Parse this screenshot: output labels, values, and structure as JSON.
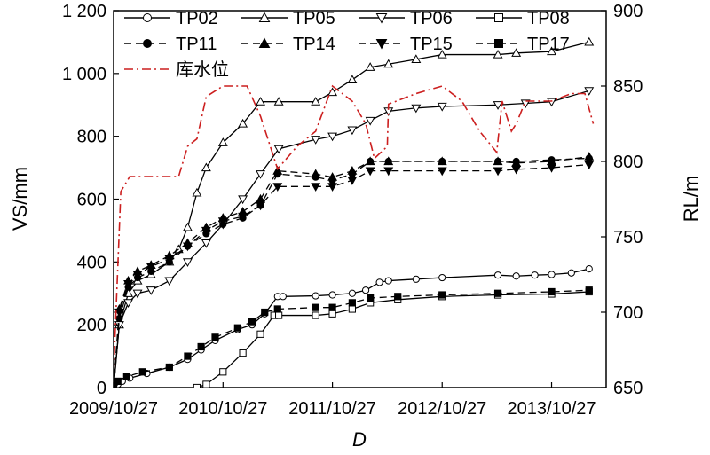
{
  "chart_data": {
    "type": "line",
    "xlabel": "D",
    "ylabel_left": "VS/mm",
    "ylabel_right": "RL/m",
    "x_ticks": [
      "2009/10/27",
      "2010/10/27",
      "2011/10/27",
      "2012/10/27",
      "2013/10/27"
    ],
    "xlim": [
      "2009/10/27",
      "2014/04/27"
    ],
    "ylim_left": [
      0,
      1200
    ],
    "ylim_right": [
      650,
      900
    ],
    "y_ticks_left": [
      "0",
      "200",
      "400",
      "600",
      "800",
      "1 000",
      "1 200"
    ],
    "y_ticks_right": [
      "650",
      "700",
      "750",
      "800",
      "850",
      "900"
    ],
    "legend_position": "top",
    "series": [
      {
        "name": "TP02",
        "axis": "left",
        "marker": "circle-open",
        "dash": "solid",
        "points": [
          [
            "2009/10/27",
            0
          ],
          [
            "2009/11/10",
            10
          ],
          [
            "2009/11/25",
            20
          ],
          [
            "2009/12/20",
            30
          ],
          [
            "2010/02/15",
            45
          ],
          [
            "2010/05/01",
            65
          ],
          [
            "2010/07/01",
            90
          ],
          [
            "2010/08/15",
            120
          ],
          [
            "2010/10/01",
            150
          ],
          [
            "2010/12/15",
            185
          ],
          [
            "2011/02/01",
            200
          ],
          [
            "2011/03/15",
            235
          ],
          [
            "2011/04/27",
            290
          ],
          [
            "2011/05/15",
            290
          ],
          [
            "2011/09/01",
            292
          ],
          [
            "2011/10/27",
            295
          ],
          [
            "2012/01/01",
            300
          ],
          [
            "2012/02/15",
            310
          ],
          [
            "2012/04/01",
            335
          ],
          [
            "2012/05/01",
            340
          ],
          [
            "2012/08/01",
            345
          ],
          [
            "2012/10/27",
            350
          ],
          [
            "2013/05/01",
            358
          ],
          [
            "2013/07/01",
            355
          ],
          [
            "2013/09/01",
            358
          ],
          [
            "2013/10/27",
            360
          ],
          [
            "2014/01/01",
            365
          ],
          [
            "2014/03/01",
            378
          ]
        ]
      },
      {
        "name": "TP05",
        "axis": "left",
        "marker": "triangle-up-open",
        "dash": "solid",
        "points": [
          [
            "2009/10/27",
            0
          ],
          [
            "2009/11/15",
            200
          ],
          [
            "2009/12/15",
            300
          ],
          [
            "2010/01/15",
            340
          ],
          [
            "2010/03/01",
            360
          ],
          [
            "2010/05/01",
            400
          ],
          [
            "2010/06/01",
            440
          ],
          [
            "2010/07/01",
            510
          ],
          [
            "2010/08/01",
            620
          ],
          [
            "2010/09/01",
            700
          ],
          [
            "2010/10/27",
            780
          ],
          [
            "2011/01/01",
            840
          ],
          [
            "2011/03/01",
            910
          ],
          [
            "2011/05/01",
            910
          ],
          [
            "2011/09/01",
            910
          ],
          [
            "2011/10/27",
            940
          ],
          [
            "2012/01/01",
            980
          ],
          [
            "2012/03/01",
            1020
          ],
          [
            "2012/05/01",
            1030
          ],
          [
            "2012/08/01",
            1045
          ],
          [
            "2012/10/27",
            1060
          ],
          [
            "2013/05/01",
            1060
          ],
          [
            "2013/07/01",
            1065
          ],
          [
            "2013/10/27",
            1070
          ],
          [
            "2014/03/01",
            1100
          ]
        ]
      },
      {
        "name": "TP06",
        "axis": "left",
        "marker": "triangle-down-open",
        "dash": "solid",
        "points": [
          [
            "2009/10/27",
            0
          ],
          [
            "2009/11/15",
            200
          ],
          [
            "2009/12/15",
            270
          ],
          [
            "2010/01/15",
            300
          ],
          [
            "2010/03/01",
            310
          ],
          [
            "2010/05/01",
            340
          ],
          [
            "2010/07/01",
            400
          ],
          [
            "2010/09/01",
            460
          ],
          [
            "2010/10/27",
            520
          ],
          [
            "2011/01/01",
            600
          ],
          [
            "2011/03/01",
            680
          ],
          [
            "2011/05/01",
            760
          ],
          [
            "2011/09/01",
            790
          ],
          [
            "2011/10/27",
            800
          ],
          [
            "2012/01/01",
            820
          ],
          [
            "2012/03/01",
            850
          ],
          [
            "2012/05/01",
            880
          ],
          [
            "2012/08/01",
            890
          ],
          [
            "2012/10/27",
            895
          ],
          [
            "2013/05/01",
            900
          ],
          [
            "2013/08/01",
            905
          ],
          [
            "2013/10/27",
            910
          ],
          [
            "2014/03/01",
            945
          ]
        ]
      },
      {
        "name": "TP08",
        "axis": "left",
        "marker": "square-open",
        "dash": "solid",
        "points": [
          [
            "2010/08/01",
            0
          ],
          [
            "2010/09/01",
            10
          ],
          [
            "2010/10/27",
            50
          ],
          [
            "2011/01/01",
            110
          ],
          [
            "2011/03/01",
            170
          ],
          [
            "2011/04/15",
            230
          ],
          [
            "2011/05/01",
            230
          ],
          [
            "2011/09/01",
            230
          ],
          [
            "2011/10/27",
            235
          ],
          [
            "2012/01/01",
            250
          ],
          [
            "2012/03/01",
            270
          ],
          [
            "2012/06/01",
            280
          ],
          [
            "2012/10/27",
            290
          ],
          [
            "2013/05/01",
            295
          ],
          [
            "2013/10/27",
            298
          ],
          [
            "2014/03/01",
            305
          ]
        ]
      },
      {
        "name": "TP11",
        "axis": "left",
        "marker": "circle-filled",
        "dash": "dashed",
        "points": [
          [
            "2009/10/27",
            0
          ],
          [
            "2009/11/15",
            220
          ],
          [
            "2009/12/15",
            320
          ],
          [
            "2010/01/15",
            350
          ],
          [
            "2010/03/01",
            370
          ],
          [
            "2010/05/01",
            400
          ],
          [
            "2010/07/01",
            450
          ],
          [
            "2010/09/01",
            490
          ],
          [
            "2010/10/27",
            520
          ],
          [
            "2011/01/01",
            540
          ],
          [
            "2011/03/01",
            580
          ],
          [
            "2011/04/27",
            680
          ],
          [
            "2011/09/01",
            670
          ],
          [
            "2011/10/27",
            660
          ],
          [
            "2012/01/01",
            680
          ],
          [
            "2012/03/01",
            720
          ],
          [
            "2012/05/01",
            720
          ],
          [
            "2012/10/27",
            720
          ],
          [
            "2013/05/01",
            720
          ],
          [
            "2013/07/01",
            720
          ],
          [
            "2013/10/27",
            725
          ],
          [
            "2014/03/01",
            730
          ]
        ]
      },
      {
        "name": "TP14",
        "axis": "left",
        "marker": "triangle-up-filled",
        "dash": "dashed",
        "points": [
          [
            "2009/10/27",
            0
          ],
          [
            "2009/11/15",
            250
          ],
          [
            "2009/12/15",
            340
          ],
          [
            "2010/01/15",
            370
          ],
          [
            "2010/03/01",
            390
          ],
          [
            "2010/05/01",
            420
          ],
          [
            "2010/07/01",
            460
          ],
          [
            "2010/09/01",
            510
          ],
          [
            "2010/10/27",
            540
          ],
          [
            "2011/01/01",
            560
          ],
          [
            "2011/03/01",
            600
          ],
          [
            "2011/04/27",
            690
          ],
          [
            "2011/09/01",
            680
          ],
          [
            "2011/10/27",
            670
          ],
          [
            "2012/01/01",
            690
          ],
          [
            "2012/03/01",
            720
          ],
          [
            "2012/05/01",
            720
          ],
          [
            "2012/10/27",
            720
          ],
          [
            "2013/05/01",
            720
          ],
          [
            "2013/07/01",
            715
          ],
          [
            "2013/10/27",
            720
          ],
          [
            "2014/03/01",
            735
          ]
        ]
      },
      {
        "name": "TP15",
        "axis": "left",
        "marker": "triangle-down-filled",
        "dash": "dashed",
        "points": [
          [
            "2009/10/27",
            0
          ],
          [
            "2009/11/15",
            240
          ],
          [
            "2009/12/15",
            330
          ],
          [
            "2010/01/15",
            360
          ],
          [
            "2010/03/01",
            385
          ],
          [
            "2010/05/01",
            410
          ],
          [
            "2010/07/01",
            450
          ],
          [
            "2010/09/01",
            500
          ],
          [
            "2010/10/27",
            530
          ],
          [
            "2011/01/01",
            545
          ],
          [
            "2011/03/01",
            580
          ],
          [
            "2011/04/27",
            640
          ],
          [
            "2011/09/01",
            640
          ],
          [
            "2011/10/27",
            640
          ],
          [
            "2012/01/01",
            660
          ],
          [
            "2012/03/01",
            690
          ],
          [
            "2012/05/01",
            690
          ],
          [
            "2012/10/27",
            690
          ],
          [
            "2013/05/01",
            690
          ],
          [
            "2013/07/01",
            695
          ],
          [
            "2013/10/27",
            700
          ],
          [
            "2014/03/01",
            710
          ]
        ]
      },
      {
        "name": "TP17",
        "axis": "left",
        "marker": "square-filled",
        "dash": "dashed",
        "points": [
          [
            "2009/10/27",
            0
          ],
          [
            "2009/11/10",
            20
          ],
          [
            "2009/12/10",
            35
          ],
          [
            "2010/02/01",
            50
          ],
          [
            "2010/05/01",
            65
          ],
          [
            "2010/07/01",
            100
          ],
          [
            "2010/08/15",
            130
          ],
          [
            "2010/10/01",
            160
          ],
          [
            "2010/12/15",
            190
          ],
          [
            "2011/02/01",
            210
          ],
          [
            "2011/03/15",
            240
          ],
          [
            "2011/04/27",
            250
          ],
          [
            "2011/09/01",
            255
          ],
          [
            "2011/10/27",
            255
          ],
          [
            "2012/01/01",
            270
          ],
          [
            "2012/03/01",
            285
          ],
          [
            "2012/06/01",
            290
          ],
          [
            "2012/10/27",
            295
          ],
          [
            "2013/05/01",
            300
          ],
          [
            "2013/10/27",
            305
          ],
          [
            "2014/03/01",
            310
          ]
        ]
      },
      {
        "name": "库水位",
        "axis": "right",
        "marker": "none",
        "dash": "dash-dot",
        "color": "#cc1f1f",
        "points": [
          [
            "2009/10/27",
            660
          ],
          [
            "2009/11/20",
            780
          ],
          [
            "2009/12/20",
            790
          ],
          [
            "2010/06/01",
            790
          ],
          [
            "2010/07/01",
            810
          ],
          [
            "2010/08/01",
            815
          ],
          [
            "2010/09/01",
            843
          ],
          [
            "2010/10/27",
            850
          ],
          [
            "2011/01/15",
            850
          ],
          [
            "2011/03/01",
            830
          ],
          [
            "2011/04/27",
            795
          ],
          [
            "2011/07/01",
            810
          ],
          [
            "2011/09/01",
            820
          ],
          [
            "2011/10/27",
            850
          ],
          [
            "2012/01/01",
            840
          ],
          [
            "2012/02/15",
            825
          ],
          [
            "2012/03/15",
            802
          ],
          [
            "2012/04/27",
            810
          ],
          [
            "2012/05/01",
            838
          ],
          [
            "2012/08/01",
            845
          ],
          [
            "2012/10/27",
            850
          ],
          [
            "2013/01/01",
            840
          ],
          [
            "2013/03/01",
            820
          ],
          [
            "2013/04/27",
            806
          ],
          [
            "2013/05/15",
            840
          ],
          [
            "2013/06/15",
            820
          ],
          [
            "2013/07/01",
            825
          ],
          [
            "2013/08/01",
            840
          ],
          [
            "2013/10/27",
            840
          ],
          [
            "2014/01/01",
            845
          ],
          [
            "2014/02/15",
            845
          ],
          [
            "2014/03/15",
            825
          ]
        ]
      }
    ]
  }
}
